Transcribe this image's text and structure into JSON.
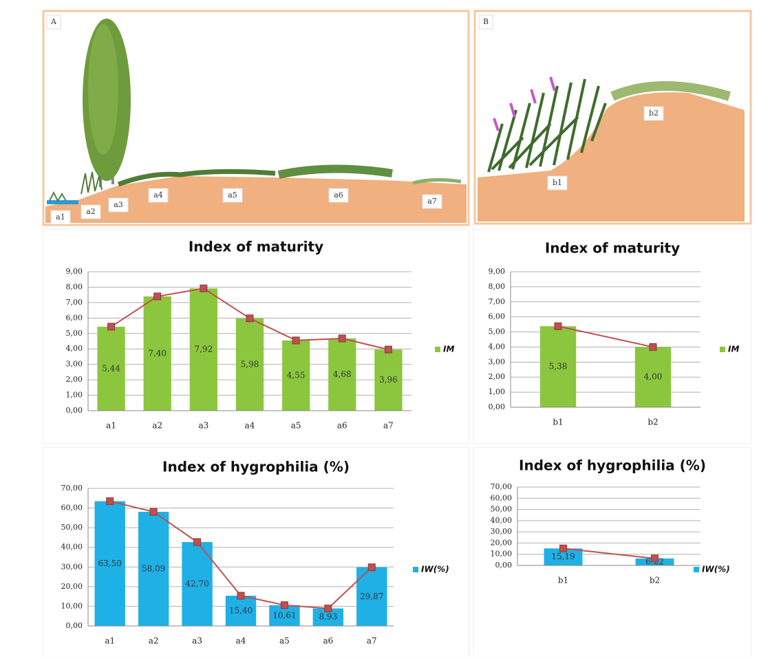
{
  "panels": [
    {
      "label": "A",
      "zones": [
        "a1",
        "a2",
        "a3",
        "a4",
        "a5",
        "a6",
        "a7"
      ]
    },
    {
      "label": "B",
      "zones": [
        "b1",
        "b2"
      ]
    }
  ],
  "chart_data": [
    {
      "type": "bar",
      "title": "Index of maturity",
      "categories": [
        "a1",
        "a2",
        "a3",
        "a4",
        "a5",
        "a6",
        "a7"
      ],
      "series": [
        {
          "name": "IM",
          "color": "#8cc63f",
          "values": [
            5.44,
            7.4,
            7.92,
            5.98,
            4.55,
            4.68,
            3.96
          ],
          "value_labels": [
            "5,44",
            "7,40",
            "7,92",
            "5,98",
            "4,55",
            "4,68",
            "3,96"
          ]
        }
      ],
      "line_color": "#c0504d",
      "ylim": [
        0,
        9
      ],
      "yticks": [
        {
          "value": 0,
          "label": "0,00"
        },
        {
          "value": 1,
          "label": "1,00"
        },
        {
          "value": 2,
          "label": "2,00"
        },
        {
          "value": 3,
          "label": "3,00"
        },
        {
          "value": 4,
          "label": "4,00"
        },
        {
          "value": 5,
          "label": "5,00"
        },
        {
          "value": 6,
          "label": "6,00"
        },
        {
          "value": 7,
          "label": "7,00"
        },
        {
          "value": 8,
          "label": "8,00"
        },
        {
          "value": 9,
          "label": "9,00"
        }
      ],
      "grid": true,
      "legend": "right"
    },
    {
      "type": "bar",
      "title": "Index of maturity",
      "categories": [
        "b1",
        "b2"
      ],
      "series": [
        {
          "name": "IM",
          "color": "#8cc63f",
          "values": [
            5.38,
            4.0
          ],
          "value_labels": [
            "5,38",
            "4,00"
          ]
        }
      ],
      "line_color": "#c0504d",
      "ylim": [
        0,
        9
      ],
      "yticks": [
        {
          "value": 0,
          "label": "0,00"
        },
        {
          "value": 1,
          "label": "1,00"
        },
        {
          "value": 2,
          "label": "2,00"
        },
        {
          "value": 3,
          "label": "3,00"
        },
        {
          "value": 4,
          "label": "4,00"
        },
        {
          "value": 5,
          "label": "5,00"
        },
        {
          "value": 6,
          "label": "6,00"
        },
        {
          "value": 7,
          "label": "7,00"
        },
        {
          "value": 8,
          "label": "8,00"
        },
        {
          "value": 9,
          "label": "9,00"
        }
      ],
      "grid": true,
      "legend": "right"
    },
    {
      "type": "bar",
      "title": "Index of hygrophilia (%)",
      "categories": [
        "a1",
        "a2",
        "a3",
        "a4",
        "a5",
        "a6",
        "a7"
      ],
      "series": [
        {
          "name": "IW(%)",
          "color": "#1fb0e6",
          "values": [
            63.5,
            58.09,
            42.7,
            15.4,
            10.61,
            8.93,
            29.87
          ],
          "value_labels": [
            "63,50",
            "58,09",
            "42,70",
            "15,40",
            "10,61",
            "8,93",
            "29,87"
          ]
        }
      ],
      "line_color": "#c0504d",
      "ylim": [
        0,
        70
      ],
      "yticks": [
        {
          "value": 0,
          "label": "0,00"
        },
        {
          "value": 10,
          "label": "10,00"
        },
        {
          "value": 20,
          "label": "20,00"
        },
        {
          "value": 30,
          "label": "30,00"
        },
        {
          "value": 40,
          "label": "40,00"
        },
        {
          "value": 50,
          "label": "50,00"
        },
        {
          "value": 60,
          "label": "60,00"
        },
        {
          "value": 70,
          "label": "70,00"
        }
      ],
      "grid": true,
      "legend": "right"
    },
    {
      "type": "bar",
      "title": "Index of hygrophilia (%)",
      "categories": [
        "b1",
        "b2"
      ],
      "series": [
        {
          "name": "IW(%)",
          "color": "#1fb0e6",
          "values": [
            15.19,
            6.22
          ],
          "value_labels": [
            "15,19",
            "6,22"
          ]
        }
      ],
      "line_color": "#c0504d",
      "ylim": [
        0,
        70
      ],
      "yticks": [
        {
          "value": 0,
          "label": "0,00"
        },
        {
          "value": 10,
          "label": "10,00"
        },
        {
          "value": 20,
          "label": "20,00"
        },
        {
          "value": 30,
          "label": "30,00"
        },
        {
          "value": 40,
          "label": "40,00"
        },
        {
          "value": 50,
          "label": "50,00"
        },
        {
          "value": 60,
          "label": "60,00"
        },
        {
          "value": 70,
          "label": "70,00"
        }
      ],
      "grid": true,
      "legend": "right"
    }
  ]
}
